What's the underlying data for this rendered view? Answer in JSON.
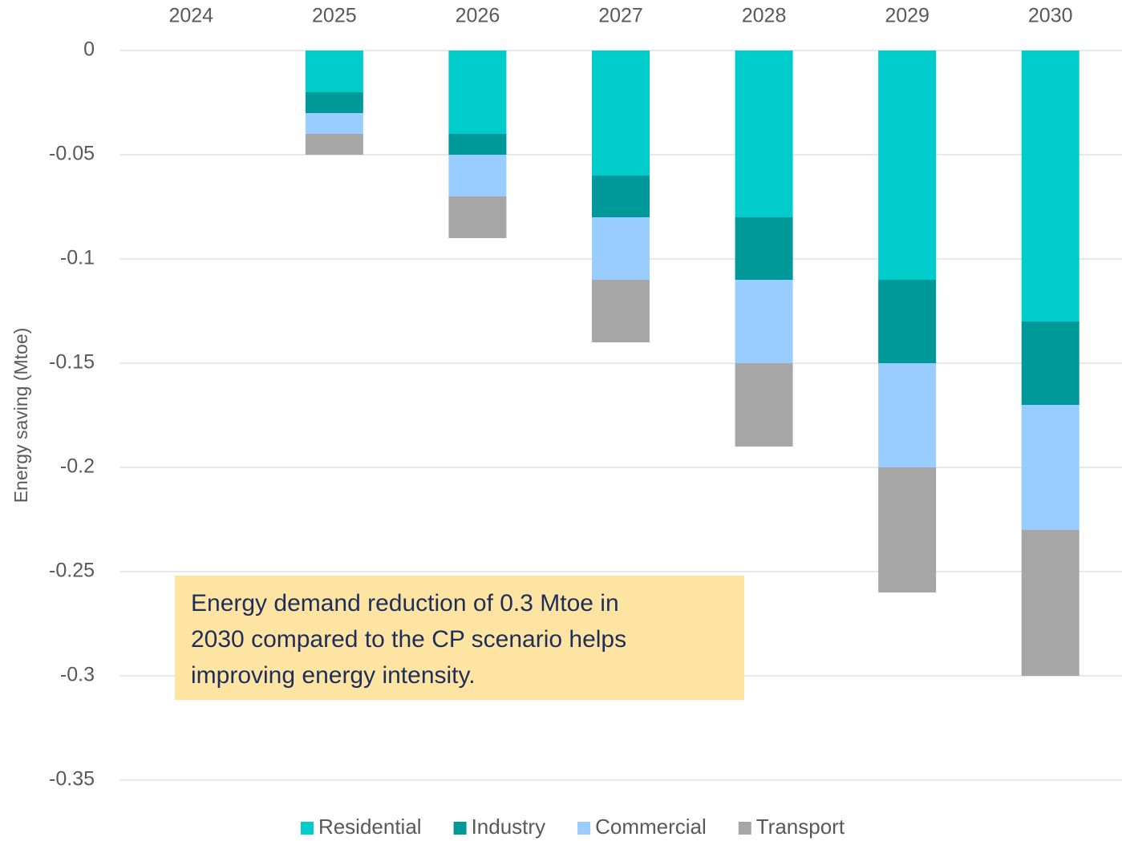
{
  "chart_data": {
    "type": "stacked_bar",
    "y_label": "Energy saving (Mtoe)",
    "categories": [
      "2024",
      "2025",
      "2026",
      "2027",
      "2028",
      "2029",
      "2030"
    ],
    "series": [
      {
        "name": "Residential",
        "color": "#00cccc",
        "values": [
          0,
          -0.02,
          -0.04,
          -0.06,
          -0.08,
          -0.11,
          -0.13
        ]
      },
      {
        "name": "Industry",
        "color": "#009999",
        "values": [
          0,
          -0.01,
          -0.01,
          -0.02,
          -0.03,
          -0.04,
          -0.04
        ]
      },
      {
        "name": "Commercial",
        "color": "#99ccff",
        "values": [
          0,
          -0.01,
          -0.02,
          -0.03,
          -0.04,
          -0.05,
          -0.06
        ]
      },
      {
        "name": "Transport",
        "color": "#a6a6a6",
        "values": [
          0,
          -0.01,
          -0.02,
          -0.03,
          -0.04,
          -0.06,
          -0.07
        ]
      }
    ],
    "ylim": [
      -0.35,
      0
    ],
    "yticks": [
      0,
      -0.05,
      -0.1,
      -0.15,
      -0.2,
      -0.25,
      -0.3,
      -0.35
    ],
    "grid": true,
    "legend": "bottom",
    "annotation": [
      "Energy demand reduction of 0.3 Mtoe in",
      "2030 compared to the CP scenario helps",
      "improving energy intensity."
    ]
  }
}
